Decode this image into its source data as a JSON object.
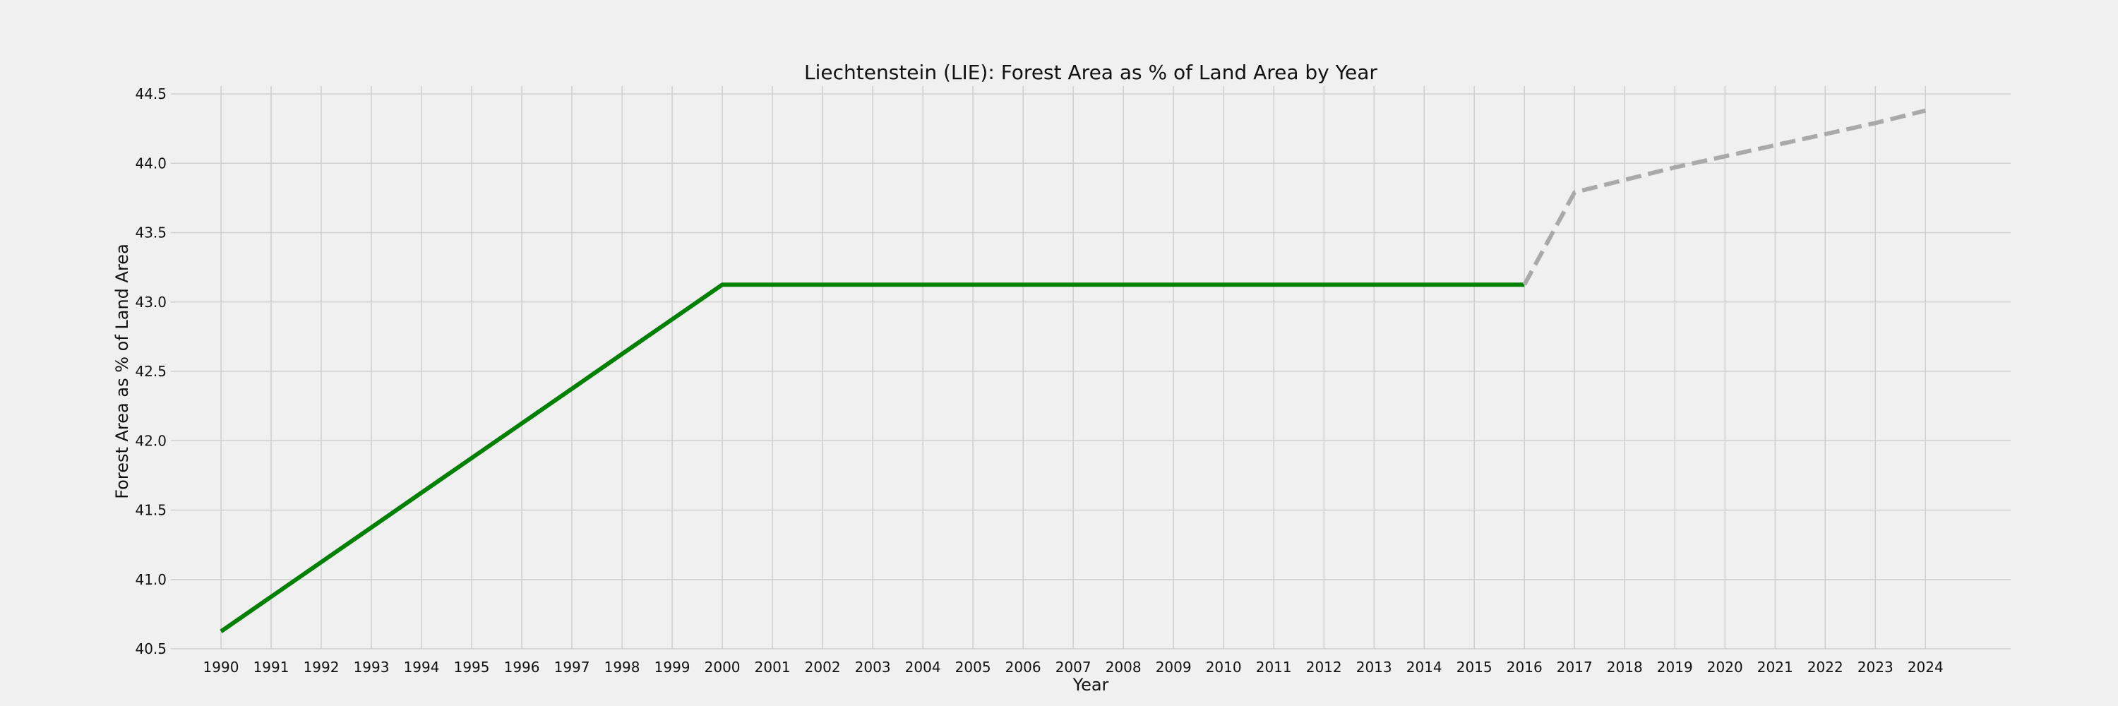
{
  "chart_data": {
    "type": "line",
    "title": "Liechtenstein (LIE): Forest Area as % of Land Area by Year",
    "xlabel": "Year",
    "ylabel": "Forest Area as % of Land Area",
    "x": [
      1990,
      1991,
      1992,
      1993,
      1994,
      1995,
      1996,
      1997,
      1998,
      1999,
      2000,
      2001,
      2002,
      2003,
      2004,
      2005,
      2006,
      2007,
      2008,
      2009,
      2010,
      2011,
      2012,
      2013,
      2014,
      2015,
      2016,
      2017,
      2018,
      2019,
      2020,
      2021,
      2022,
      2023,
      2024
    ],
    "xlim": [
      1989,
      2025.7
    ],
    "ylim": [
      40.5,
      44.55
    ],
    "yticks": [
      40.5,
      41.0,
      41.5,
      42.0,
      42.5,
      43.0,
      43.5,
      44.0,
      44.5
    ],
    "grid": true,
    "series": [
      {
        "style": "solid",
        "color": "#008000",
        "x": [
          1990,
          1991,
          1992,
          1993,
          1994,
          1995,
          1996,
          1997,
          1998,
          1999,
          2000,
          2001,
          2002,
          2003,
          2004,
          2005,
          2006,
          2007,
          2008,
          2009,
          2010,
          2011,
          2012,
          2013,
          2014,
          2015,
          2016
        ],
        "values": [
          40.625,
          40.875,
          41.125,
          41.375,
          41.625,
          41.875,
          42.125,
          42.375,
          42.625,
          42.875,
          43.125,
          43.125,
          43.125,
          43.125,
          43.125,
          43.125,
          43.125,
          43.125,
          43.125,
          43.125,
          43.125,
          43.125,
          43.125,
          43.125,
          43.125,
          43.125,
          43.125
        ]
      },
      {
        "style": "dashed",
        "color": "#a9a9a9",
        "x": [
          2016,
          2017,
          2018,
          2019,
          2020,
          2021,
          2022,
          2023,
          2024
        ],
        "values": [
          43.125,
          43.79,
          43.88,
          43.97,
          44.05,
          44.13,
          44.21,
          44.29,
          44.38
        ]
      }
    ]
  }
}
